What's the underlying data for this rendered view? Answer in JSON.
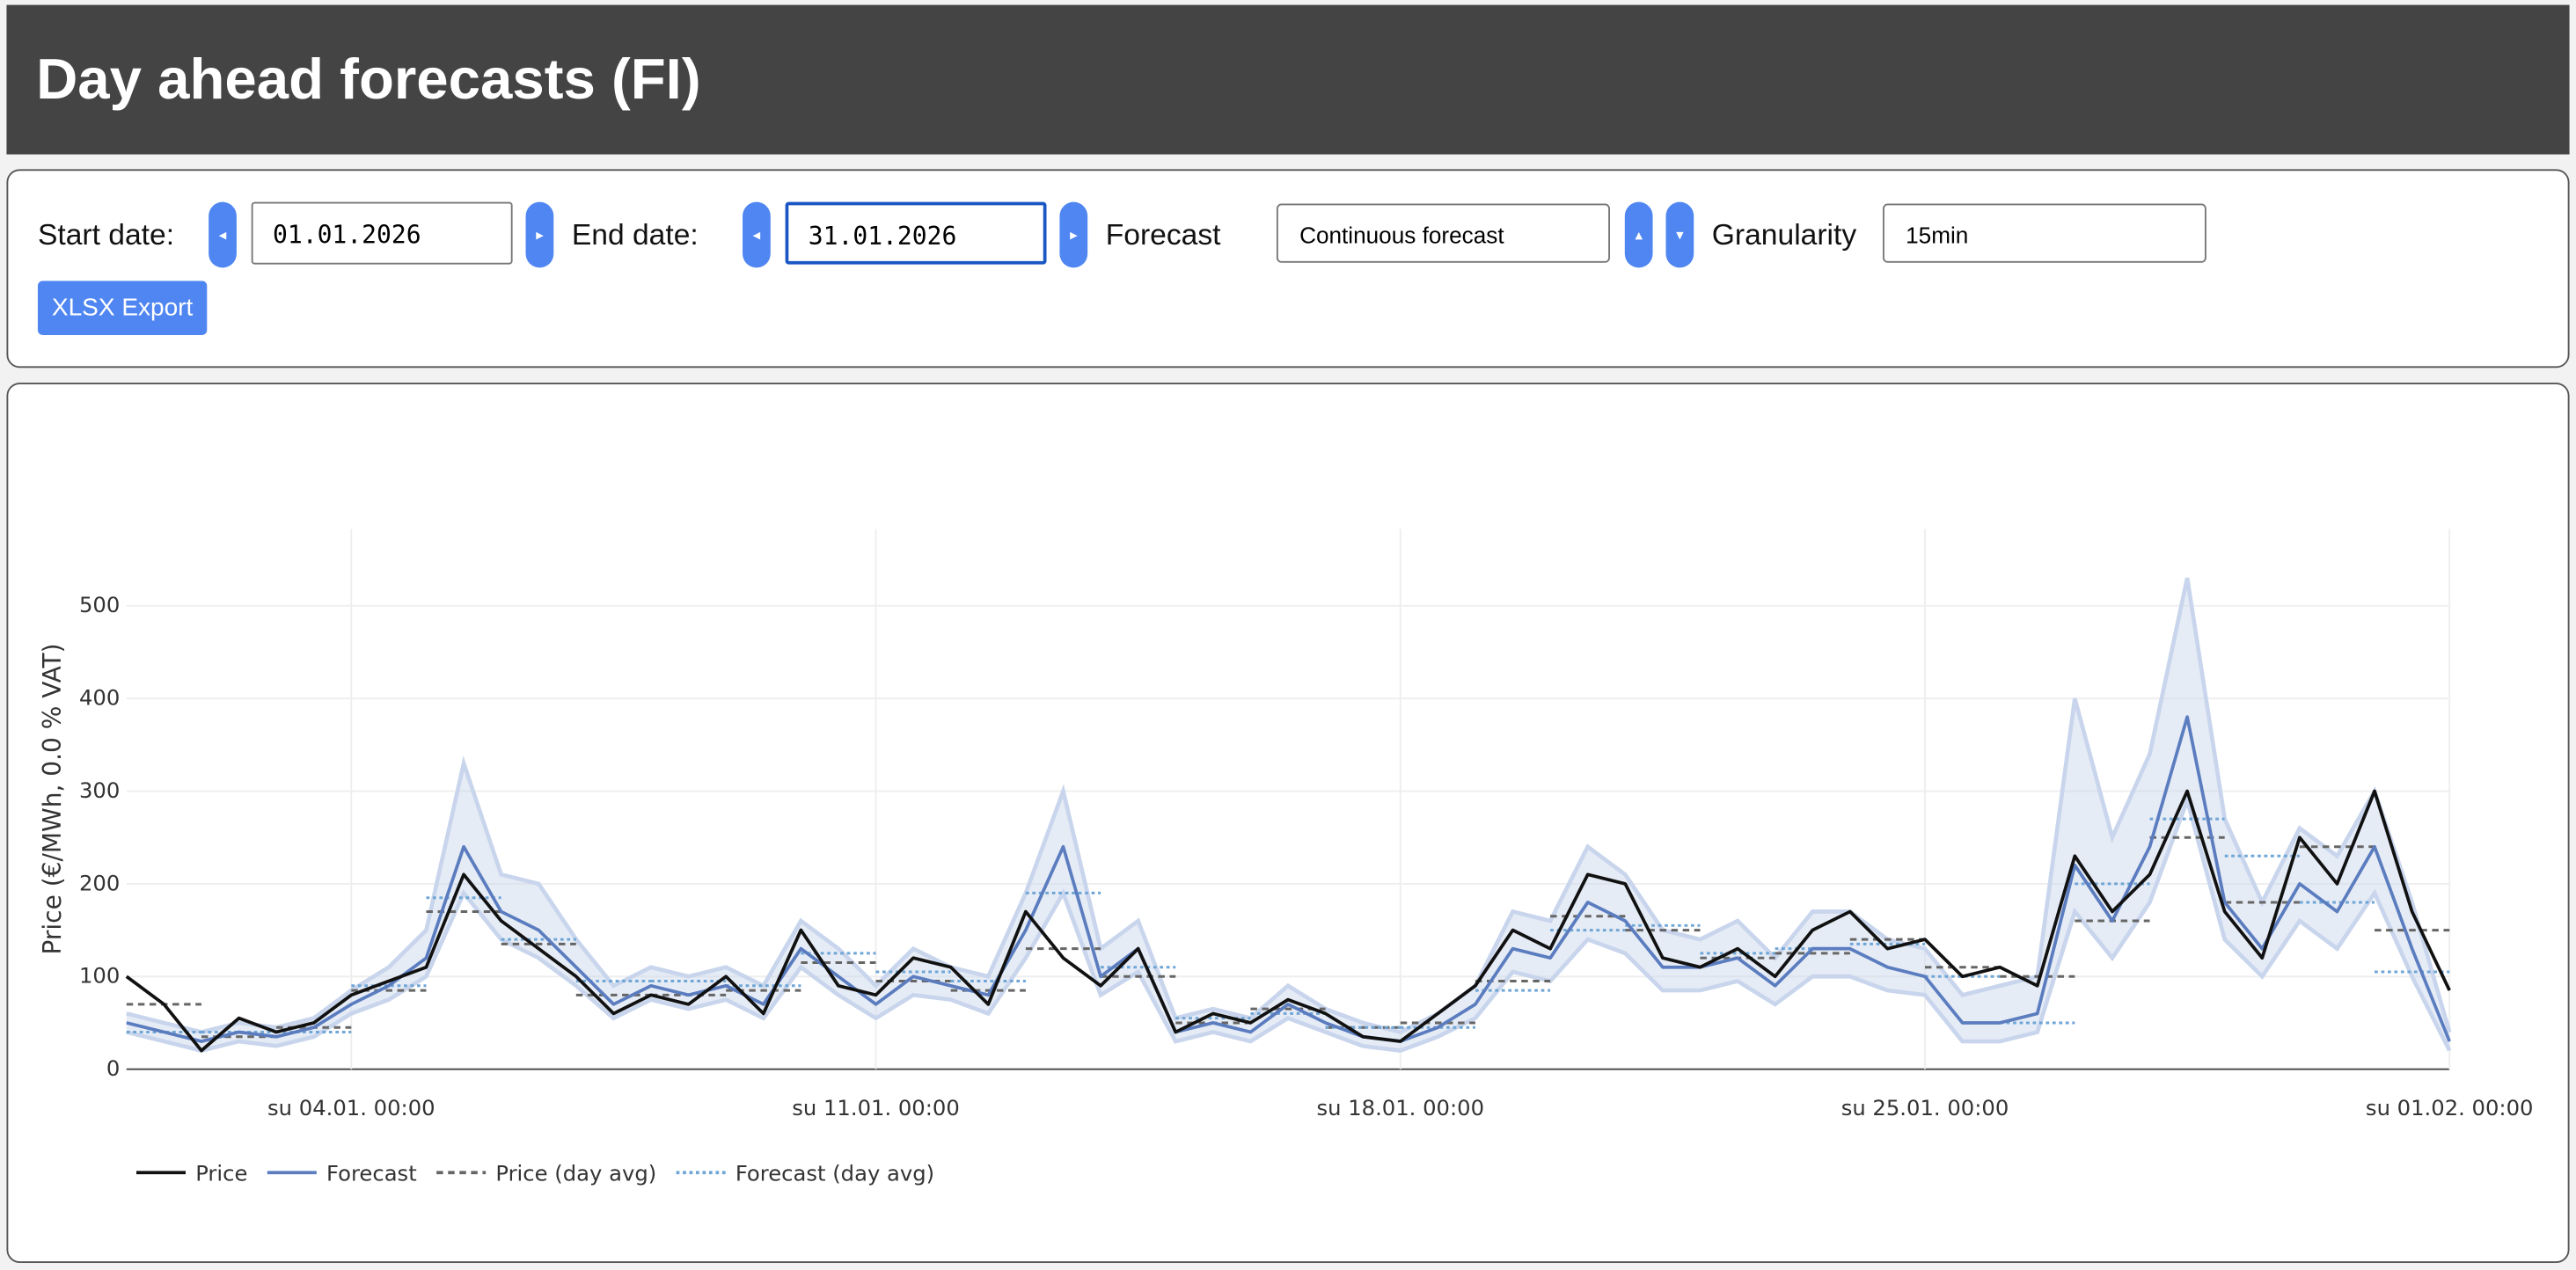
{
  "header": {
    "title": "Day ahead forecasts (FI)"
  },
  "controls": {
    "start_label": "Start date:",
    "start_date": "01.01.2026",
    "end_label": "End date:",
    "end_date": "31.01.2026",
    "forecast_label": "Forecast",
    "forecast_select": "Continuous forecast",
    "granularity_label": "Granularity",
    "granularity_select": "15min",
    "export_button": "XLSX Export"
  },
  "chart_data": {
    "type": "line",
    "y_label": "Price (€/MWh, 0.0 % VAT)",
    "xlim": [
      "01.01. 00:00",
      "01.02. 00:00"
    ],
    "xticks": [
      {
        "value": "04.01. 00:00",
        "label": "su 04.01. 00:00"
      },
      {
        "value": "11.01. 00:00",
        "label": "su 11.01. 00:00"
      },
      {
        "value": "18.01. 00:00",
        "label": "su 18.01. 00:00"
      },
      {
        "value": "25.01. 00:00",
        "label": "su 25.01. 00:00"
      },
      {
        "value": "01.02. 00:00",
        "label": "su 01.02. 00:00"
      }
    ],
    "ylim": [
      0,
      583
    ],
    "yticks": [
      0,
      100,
      200,
      300,
      400,
      500
    ],
    "grid": true,
    "legend": "bottom-left",
    "x": [
      "01.01. 00:00",
      "01.01. 12:00",
      "02.01. 00:00",
      "02.01. 12:00",
      "03.01. 00:00",
      "03.01. 12:00",
      "04.01. 00:00",
      "04.01. 12:00",
      "05.01. 00:00",
      "05.01. 12:00",
      "06.01. 00:00",
      "06.01. 12:00",
      "07.01. 00:00",
      "07.01. 12:00",
      "08.01. 00:00",
      "08.01. 12:00",
      "09.01. 00:00",
      "09.01. 12:00",
      "10.01. 00:00",
      "10.01. 12:00",
      "11.01. 00:00",
      "11.01. 12:00",
      "12.01. 00:00",
      "12.01. 12:00",
      "13.01. 00:00",
      "13.01. 12:00",
      "14.01. 00:00",
      "14.01. 12:00",
      "15.01. 00:00",
      "15.01. 12:00",
      "16.01. 00:00",
      "16.01. 12:00",
      "17.01. 00:00",
      "17.01. 12:00",
      "18.01. 00:00",
      "18.01. 12:00",
      "19.01. 00:00",
      "19.01. 12:00",
      "20.01. 00:00",
      "20.01. 12:00",
      "21.01. 00:00",
      "21.01. 12:00",
      "22.01. 00:00",
      "22.01. 12:00",
      "23.01. 00:00",
      "23.01. 12:00",
      "24.01. 00:00",
      "24.01. 12:00",
      "25.01. 00:00",
      "25.01. 12:00",
      "26.01. 00:00",
      "26.01. 12:00",
      "27.01. 00:00",
      "27.01. 12:00",
      "28.01. 00:00",
      "28.01. 12:00",
      "29.01. 00:00",
      "29.01. 12:00",
      "30.01. 00:00",
      "30.01. 12:00",
      "31.01. 00:00",
      "31.01. 12:00",
      "01.02. 00:00"
    ],
    "series": [
      {
        "name": "Price",
        "color": "#111111",
        "dash": "solid",
        "values": [
          100,
          70,
          20,
          55,
          40,
          50,
          80,
          95,
          110,
          210,
          160,
          130,
          100,
          60,
          80,
          70,
          100,
          60,
          150,
          90,
          80,
          120,
          110,
          70,
          170,
          120,
          90,
          130,
          40,
          60,
          50,
          75,
          60,
          35,
          30,
          60,
          90,
          150,
          130,
          210,
          200,
          120,
          110,
          130,
          100,
          150,
          170,
          130,
          140,
          100,
          110,
          90,
          230,
          170,
          210,
          300,
          170,
          120,
          250,
          200,
          300,
          170,
          85
        ]
      },
      {
        "name": "Forecast",
        "color": "#5b7dbf",
        "dash": "solid",
        "values": [
          50,
          40,
          30,
          40,
          35,
          45,
          70,
          90,
          120,
          240,
          170,
          150,
          110,
          70,
          90,
          80,
          90,
          70,
          130,
          100,
          70,
          100,
          90,
          80,
          150,
          240,
          100,
          130,
          40,
          50,
          40,
          70,
          50,
          35,
          30,
          45,
          70,
          130,
          120,
          180,
          160,
          110,
          110,
          120,
          90,
          130,
          130,
          110,
          100,
          50,
          50,
          60,
          220,
          160,
          240,
          380,
          180,
          130,
          200,
          170,
          240,
          130,
          30
        ]
      }
    ],
    "band": {
      "color": "#c8d5ec",
      "lower": [
        40,
        30,
        20,
        30,
        25,
        35,
        60,
        75,
        100,
        190,
        140,
        120,
        90,
        55,
        75,
        65,
        75,
        55,
        110,
        80,
        55,
        80,
        75,
        60,
        120,
        190,
        80,
        105,
        30,
        40,
        30,
        55,
        40,
        25,
        20,
        35,
        55,
        105,
        95,
        140,
        125,
        85,
        85,
        95,
        70,
        100,
        100,
        85,
        80,
        30,
        30,
        40,
        170,
        120,
        180,
        290,
        140,
        100,
        160,
        130,
        190,
        100,
        20
      ],
      "upper": [
        60,
        50,
        40,
        50,
        45,
        55,
        85,
        110,
        150,
        330,
        210,
        200,
        140,
        90,
        110,
        100,
        110,
        90,
        160,
        130,
        90,
        130,
        110,
        100,
        190,
        300,
        130,
        160,
        55,
        65,
        55,
        90,
        65,
        50,
        40,
        60,
        90,
        170,
        160,
        240,
        210,
        150,
        140,
        160,
        120,
        170,
        170,
        140,
        130,
        80,
        90,
        100,
        400,
        250,
        340,
        530,
        270,
        180,
        260,
        230,
        300,
        180,
        40
      ]
    },
    "daily": {
      "x": [
        "01.01. 00:00",
        "02.01. 00:00",
        "03.01. 00:00",
        "04.01. 00:00",
        "05.01. 00:00",
        "06.01. 00:00",
        "07.01. 00:00",
        "08.01. 00:00",
        "09.01. 00:00",
        "10.01. 00:00",
        "11.01. 00:00",
        "12.01. 00:00",
        "13.01. 00:00",
        "14.01. 00:00",
        "15.01. 00:00",
        "16.01. 00:00",
        "17.01. 00:00",
        "18.01. 00:00",
        "19.01. 00:00",
        "20.01. 00:00",
        "21.01. 00:00",
        "22.01. 00:00",
        "23.01. 00:00",
        "24.01. 00:00",
        "25.01. 00:00",
        "26.01. 00:00",
        "27.01. 00:00",
        "28.01. 00:00",
        "29.01. 00:00",
        "30.01. 00:00",
        "31.01. 00:00"
      ],
      "series": [
        {
          "name": "Price (day avg)",
          "color": "#666666",
          "dash": "4,3",
          "values": [
            70,
            35,
            45,
            85,
            170,
            135,
            80,
            80,
            85,
            115,
            95,
            85,
            130,
            100,
            50,
            65,
            45,
            50,
            95,
            165,
            150,
            120,
            125,
            140,
            110,
            100,
            160,
            250,
            180,
            240,
            150
          ]
        },
        {
          "name": "Forecast (day avg)",
          "color": "#6fa6d6",
          "dash": "2,2",
          "values": [
            40,
            40,
            40,
            90,
            185,
            140,
            95,
            95,
            90,
            125,
            105,
            95,
            190,
            110,
            55,
            60,
            45,
            45,
            85,
            150,
            155,
            125,
            130,
            135,
            100,
            50,
            200,
            270,
            230,
            180,
            105
          ]
        }
      ]
    }
  }
}
